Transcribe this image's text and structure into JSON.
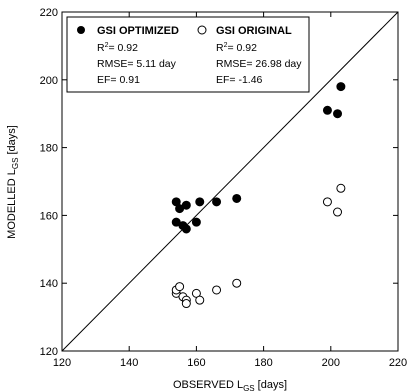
{
  "chart_data": {
    "type": "scatter",
    "xlabel": {
      "main": "OBSERVED L",
      "sub": "GS",
      "unit": " [days]"
    },
    "ylabel": {
      "main": "MODELLED L",
      "sub": "GS",
      "unit": " [days]"
    },
    "xlim": [
      120,
      220
    ],
    "ylim": [
      120,
      220
    ],
    "xticks": [
      "120",
      "140",
      "160",
      "180",
      "200",
      "220"
    ],
    "yticks": [
      "120",
      "140",
      "160",
      "180",
      "200",
      "220"
    ],
    "reference_line": "1:1",
    "grid": false,
    "legend_position": "top-left",
    "series": [
      {
        "name": "GSI OPTIMIZED",
        "marker": "filled-circle",
        "stats": {
          "r2_prefix": "R",
          "r2_value": "= 0.92",
          "rmse": "RMSE= 5.11 day",
          "ef": "EF= 0.91"
        },
        "x": [
          154,
          154,
          155,
          156,
          157,
          157,
          160,
          161,
          166,
          172,
          199,
          202,
          203
        ],
        "y": [
          164,
          158,
          162,
          157,
          156,
          163,
          158,
          164,
          164,
          165,
          191,
          190,
          198
        ]
      },
      {
        "name": "GSI ORIGINAL",
        "marker": "open-circle",
        "stats": {
          "r2_prefix": "R",
          "r2_value": "= 0.92",
          "rmse": "RMSE= 26.98 day",
          "ef": "EF= -1.46"
        },
        "x": [
          154,
          154,
          155,
          156,
          157,
          157,
          160,
          161,
          166,
          172,
          199,
          202,
          203
        ],
        "y": [
          137,
          138,
          139,
          136,
          135,
          134,
          137,
          135,
          138,
          140,
          164,
          161,
          168
        ]
      }
    ]
  }
}
